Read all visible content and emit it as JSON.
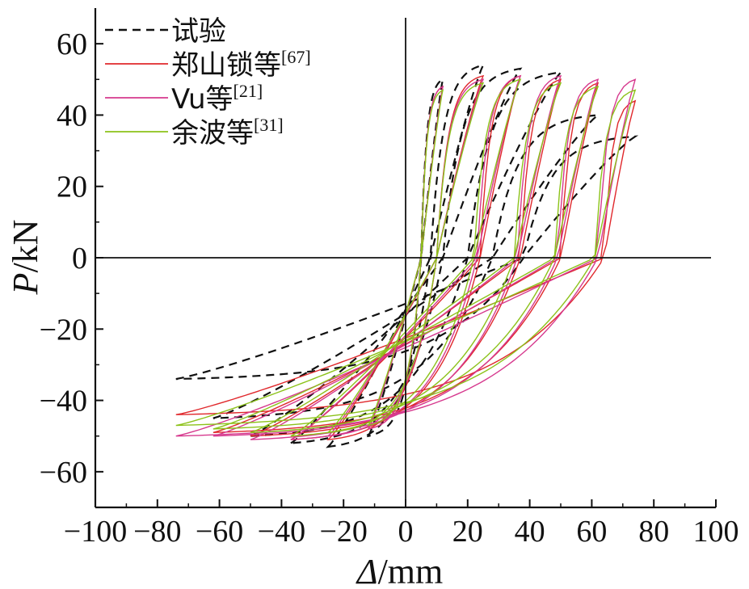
{
  "chart_data": {
    "type": "line",
    "title": "",
    "xlabel_var": "Δ",
    "xlabel_unit": "/mm",
    "ylabel_var": "P",
    "ylabel_unit": "/kN",
    "xlim": [
      -100,
      100
    ],
    "ylim": [
      -70,
      70
    ],
    "x_ticks": [
      -100,
      -80,
      -60,
      -40,
      -20,
      0,
      20,
      40,
      60,
      80,
      100
    ],
    "y_ticks": [
      -60,
      -40,
      -20,
      0,
      20,
      40,
      60
    ],
    "x_tick_labels": [
      "−100",
      "−80",
      "−60",
      "−40",
      "−20",
      "0",
      "20",
      "40",
      "60",
      "80",
      "100"
    ],
    "y_tick_labels": [
      "−60",
      "−40",
      "−20",
      "0",
      "20",
      "40",
      "60"
    ],
    "grid": false,
    "legend_position": "top-left",
    "cycle_amplitudes_mm": [
      12,
      25,
      37,
      50,
      62,
      74
    ],
    "series": [
      {
        "name": "试验",
        "sup": "",
        "color": "#111111",
        "dash": "10,7",
        "peak_pos": [
          50,
          54,
          53,
          52,
          40,
          34
        ],
        "peak_neg": [
          -50,
          -53,
          -52,
          -50,
          -45,
          -34
        ],
        "zero_load_disp": [
          5,
          8,
          12,
          20,
          28,
          38
        ]
      },
      {
        "name": "郑山锁等",
        "sup": "[67]",
        "color": "#e0282c",
        "dash": "",
        "peak_pos": [
          48,
          51,
          51,
          50,
          49,
          44
        ],
        "peak_neg": [
          -48,
          -51,
          -51,
          -50,
          -49,
          -44
        ],
        "zero_load_disp": [
          5,
          10,
          24,
          37,
          50,
          64
        ]
      },
      {
        "name": "Vu等",
        "sup": "[21]",
        "color": "#d6398e",
        "dash": "",
        "peak_pos": [
          48,
          50,
          51,
          51,
          50,
          50
        ],
        "peak_neg": [
          -48,
          -50,
          -51,
          -51,
          -50,
          -50
        ],
        "zero_load_disp": [
          5,
          10,
          23,
          36,
          49,
          62
        ]
      },
      {
        "name": "余波等",
        "sup": "[31]",
        "color": "#8cc21a",
        "dash": "",
        "peak_pos": [
          47,
          49,
          50,
          49,
          48,
          47
        ],
        "peak_neg": [
          -47,
          -49,
          -50,
          -49,
          -48,
          -47
        ],
        "zero_load_disp": [
          5,
          10,
          22,
          35,
          48,
          61
        ]
      }
    ]
  }
}
